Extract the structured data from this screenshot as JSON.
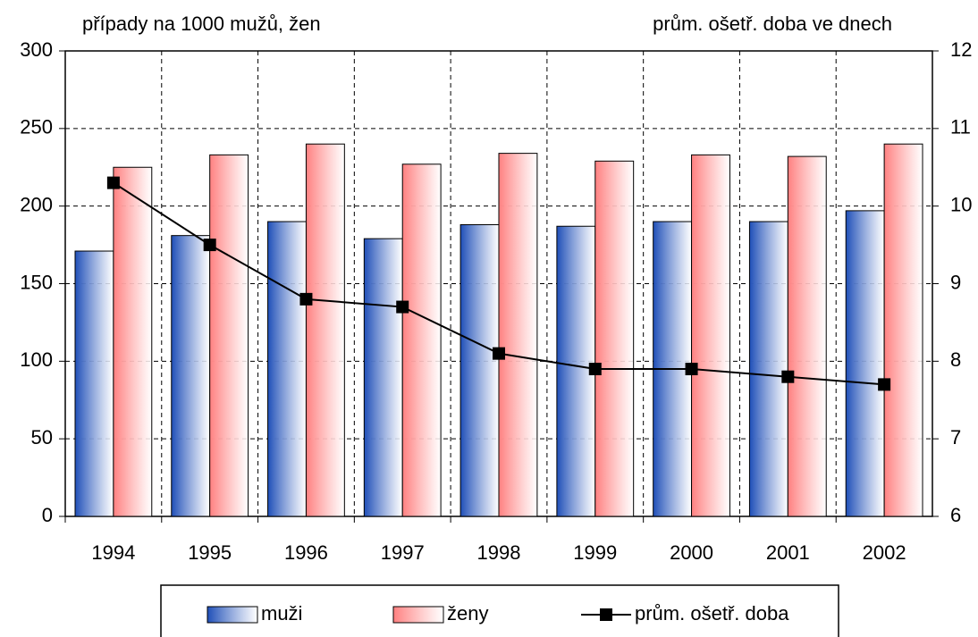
{
  "chart_data": {
    "type": "bar",
    "y_label": "případy na 1000 mužů, žen",
    "y2_label": "prům. ošetř. doba ve dnech",
    "categories": [
      "1994",
      "1995",
      "1996",
      "1997",
      "1998",
      "1999",
      "2000",
      "2001",
      "2002"
    ],
    "series": [
      {
        "name": "muži",
        "color": "#1f4fb8",
        "values": [
          171,
          181,
          190,
          179,
          188,
          187,
          190,
          190,
          197
        ]
      },
      {
        "name": "ženy",
        "color": "#ff8080",
        "values": [
          225,
          233,
          240,
          227,
          234,
          229,
          233,
          232,
          240
        ]
      },
      {
        "name": "prům. ošetř. doba",
        "type": "line",
        "axis": "y2",
        "color": "#000000",
        "values": [
          10.3,
          9.5,
          8.8,
          8.7,
          8.1,
          7.9,
          7.9,
          7.8,
          7.7
        ]
      }
    ],
    "ylim": [
      0,
      300
    ],
    "yticks": [
      0,
      50,
      100,
      150,
      200,
      250,
      300
    ],
    "y2lim": [
      6,
      12
    ],
    "y2ticks": [
      6,
      7,
      8,
      9,
      10,
      11,
      12
    ],
    "grid": true,
    "legend": "bottom"
  }
}
